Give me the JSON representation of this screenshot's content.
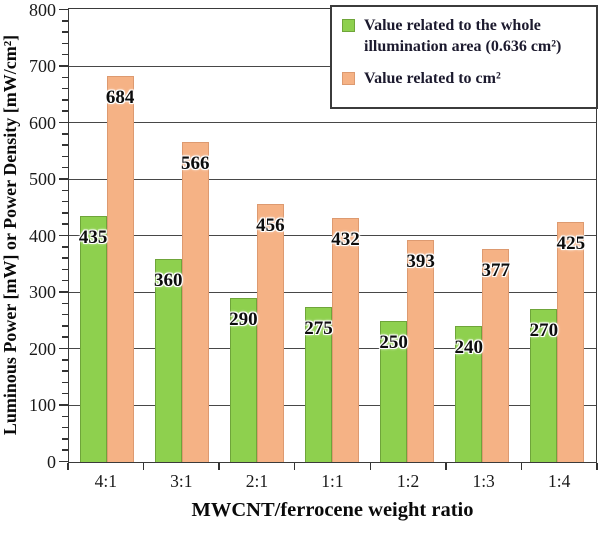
{
  "chart_data": {
    "type": "bar",
    "categories": [
      "4:1",
      "3:1",
      "2:1",
      "1:1",
      "1:2",
      "1:3",
      "1:4"
    ],
    "series": [
      {
        "name": "Value related to the whole illumination area (0.636 cm²)",
        "color": "#8ed04e",
        "border_color": "#6fa53a",
        "values": [
          435,
          360,
          290,
          275,
          250,
          240,
          270
        ]
      },
      {
        "name": "Value related to cm²",
        "color": "#f5b285",
        "border_color": "#dd9a70",
        "values": [
          684,
          566,
          456,
          432,
          393,
          377,
          425
        ]
      }
    ],
    "title": "",
    "xlabel": "MWCNT/ferrocene weight ratio",
    "ylabel": "Luminous Power [mW] or Power Density [mW/cm²]",
    "ylim": [
      0,
      800
    ],
    "yticks": [
      0,
      100,
      200,
      300,
      400,
      500,
      600,
      700,
      800
    ],
    "minor_tick_step": 20,
    "grid": "horizontal-major",
    "gridline_color": "#474747",
    "legend_position": "top-right",
    "bar_value_labels": true
  }
}
